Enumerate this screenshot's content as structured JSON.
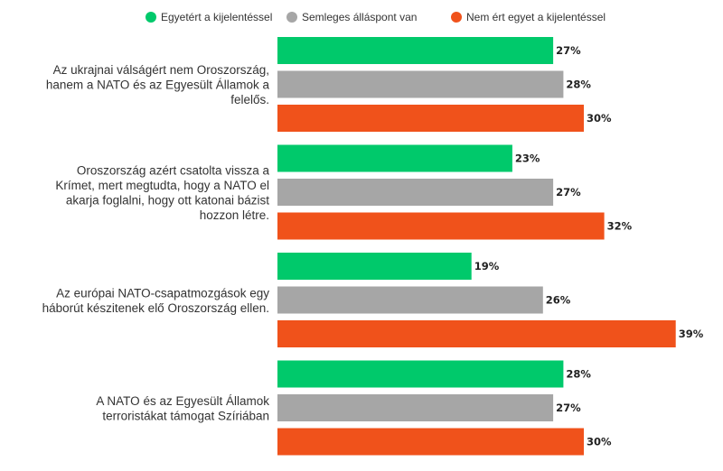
{
  "chart_data": {
    "type": "bar",
    "orientation": "horizontal",
    "legend_position": "top",
    "grid": false,
    "xlim": [
      0,
      40
    ],
    "categories": [
      [
        "Az ukrajnai válságért nem Oroszország,",
        "hanem a NATO és az Egyesült Államok a",
        "felelős."
      ],
      [
        "Oroszország azért csatolta vissza a",
        "Krímet, mert megtudta, hogy a NATO el",
        "akarja foglalni, hogy ott katonai bázist",
        "hozzon létre."
      ],
      [
        "Az európai NATO-csapatmozgások egy",
        "háborút készitenek elő Oroszország ellen."
      ],
      [
        "A NATO és az Egyesült Államok",
        "terroristákat támogat Szíriában"
      ]
    ],
    "series": [
      {
        "name": "Egyetért a kijelentéssel",
        "color": "#00c96b",
        "values": [
          27,
          23,
          19,
          28
        ]
      },
      {
        "name": "Semleges álláspont van",
        "color": "#a6a6a6",
        "values": [
          28,
          27,
          26,
          27
        ]
      },
      {
        "name": "Nem ért egyet a kijelentéssel",
        "color": "#f0521b",
        "values": [
          30,
          32,
          39,
          30
        ]
      }
    ],
    "value_suffix": "%"
  }
}
